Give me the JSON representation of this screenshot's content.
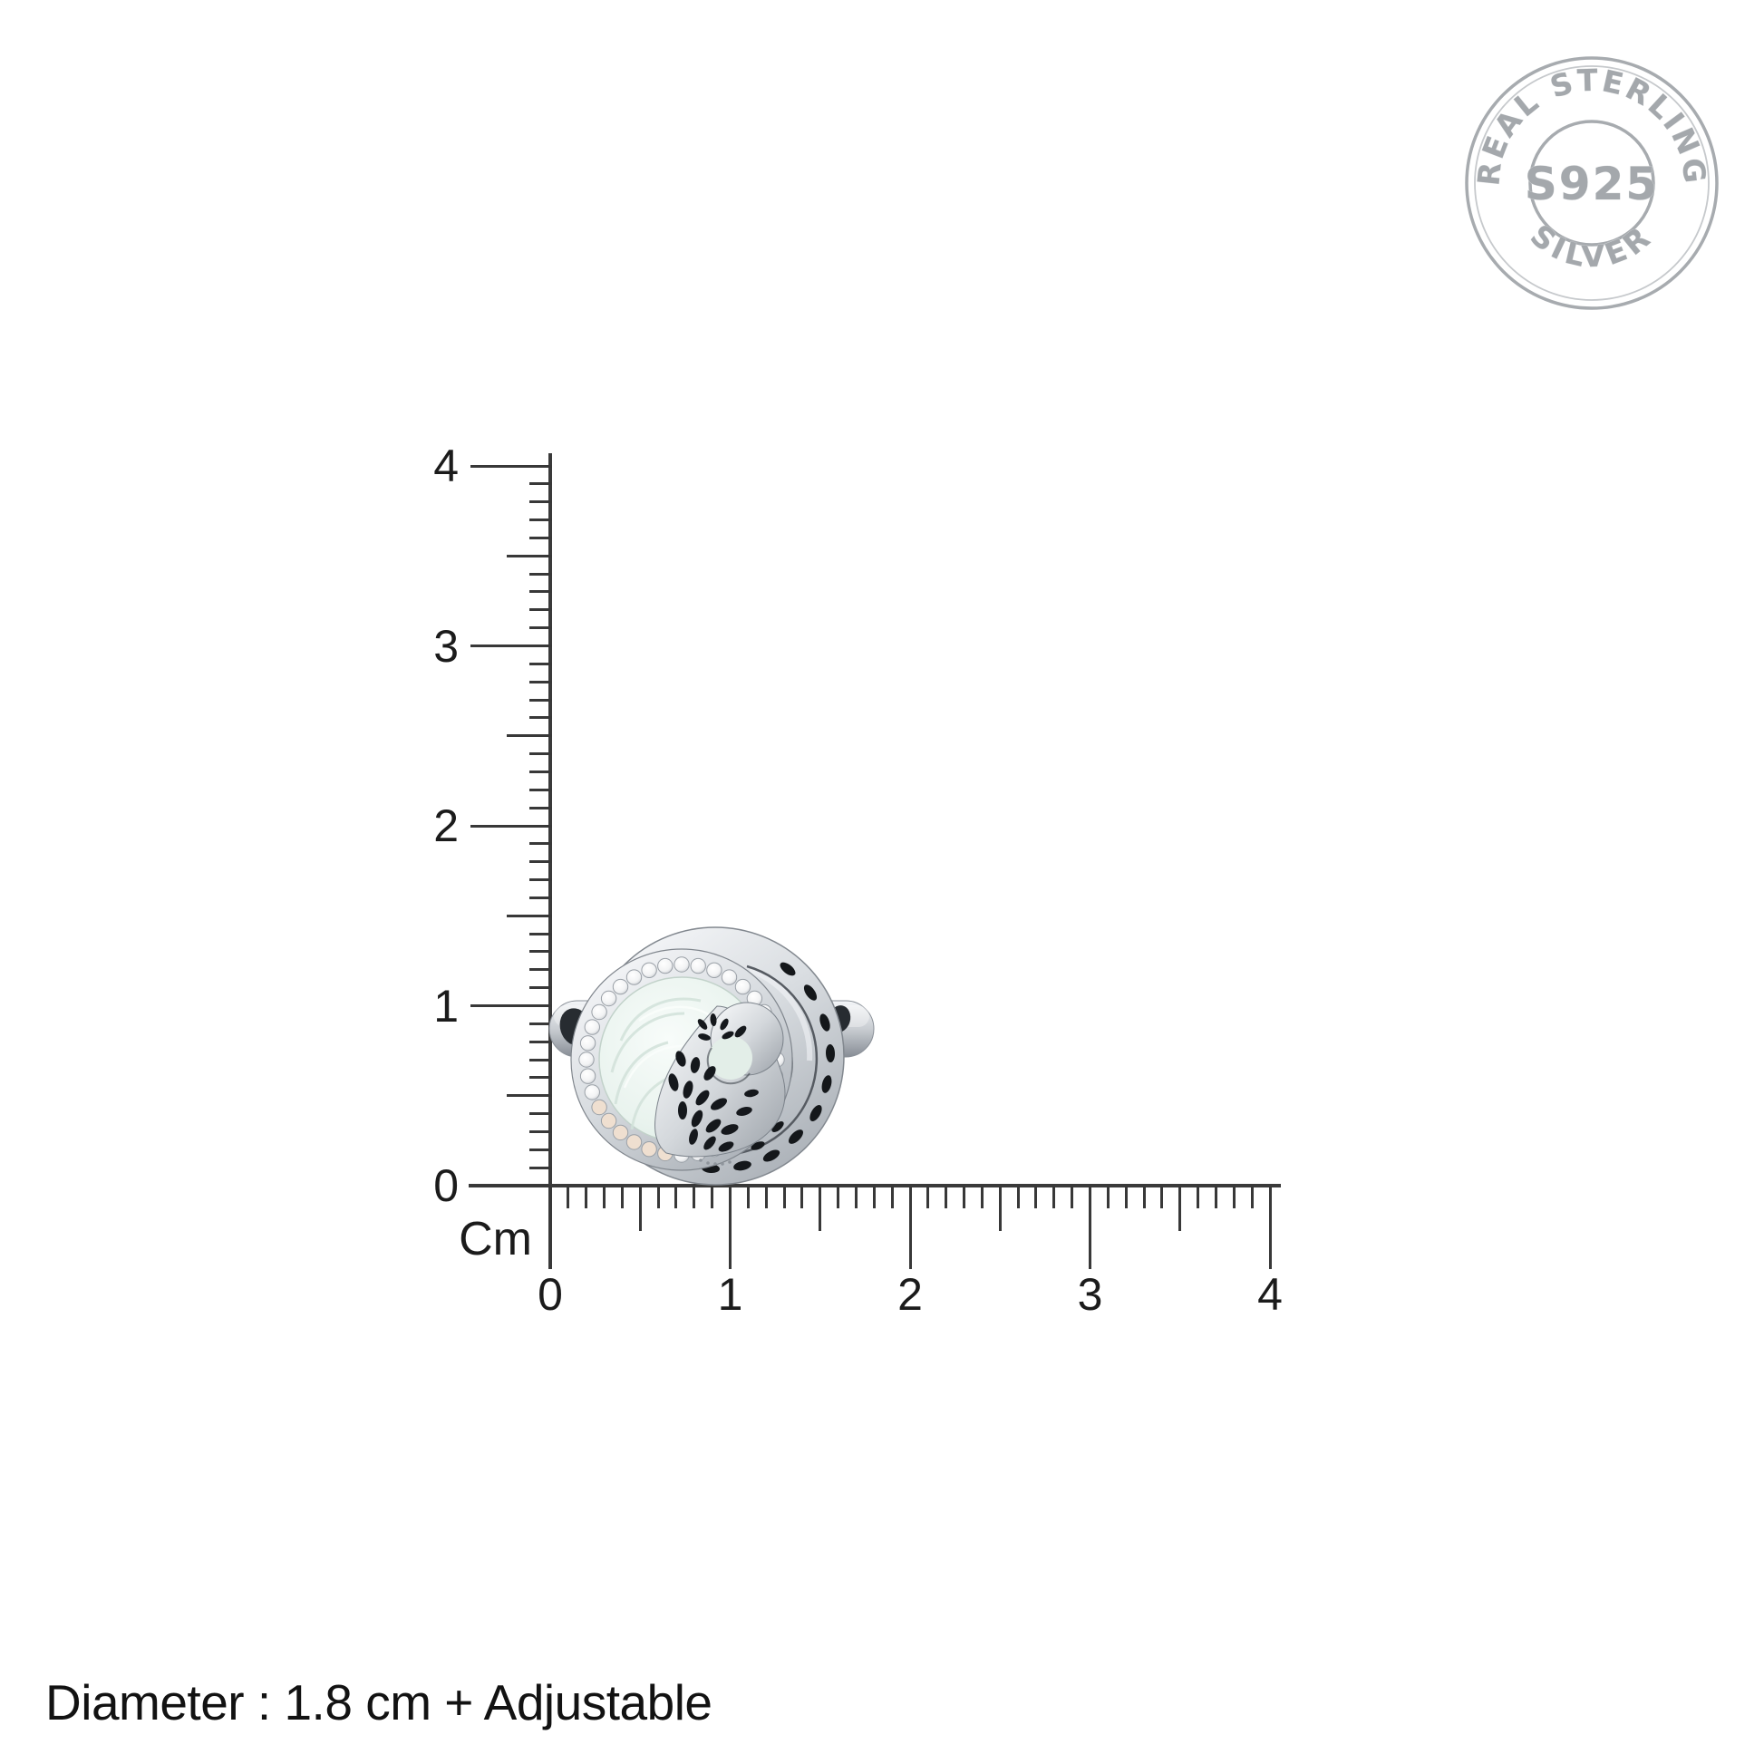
{
  "caption": {
    "text": "Diameter : 1.8 cm + Adjustable"
  },
  "stamp": {
    "arc_top": "REAL STERLING",
    "center": "S925",
    "arc_bottom": "SILVER",
    "color": "#a6aaae"
  },
  "ruler": {
    "unit": "Cm",
    "min": 0,
    "max": 4,
    "labels": [
      "0",
      "1",
      "2",
      "3",
      "4"
    ],
    "line_color": "#3a3a3a",
    "label_color": "#1b1b1b"
  },
  "ring": {
    "colors": {
      "silver_light": "#f4f6f8",
      "silver_mid": "#c9cdd2",
      "silver_dark": "#878d95",
      "enamel": "#e9f3ee",
      "enamel_deep": "#dcebe4",
      "stone_white": "#ffffff",
      "stone_tint": "#efdfd0",
      "cutout": "#15181c"
    }
  }
}
